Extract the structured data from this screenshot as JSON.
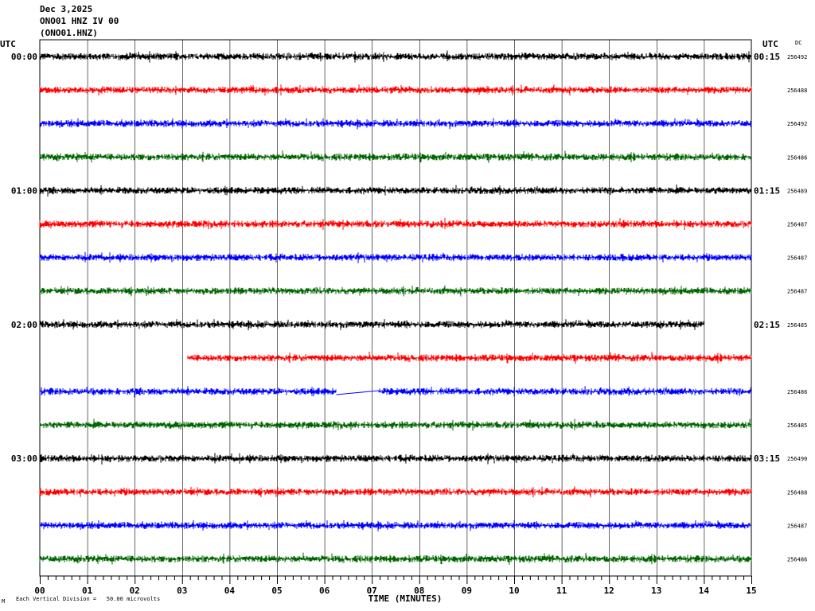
{
  "header": {
    "date": "Dec 3,2025",
    "station": "ONO01 HNZ IV 00",
    "channel": "(ONO01.HNZ)"
  },
  "left_axis_label": "UTC",
  "right_axis_label": "UTC",
  "dc_label": "DC",
  "footer": {
    "scale_note": "Each Vertical Division =   50.00 microvolts",
    "corner_mark": "M"
  },
  "colors": {
    "trace_cycle": [
      "#000000",
      "#ff0000",
      "#0000ff",
      "#006400"
    ],
    "gap_line": "#0000ff"
  },
  "chart_data": {
    "type": "line",
    "title": "Dec 3,2025 ONO01 HNZ IV 00 (ONO01.HNZ)",
    "xlabel": "TIME (MINUTES)",
    "xlim": [
      0,
      15
    ],
    "x_ticks": [
      "00",
      "01",
      "02",
      "03",
      "04",
      "05",
      "06",
      "07",
      "08",
      "09",
      "10",
      "11",
      "12",
      "13",
      "14",
      "15"
    ],
    "grid": "vertical lines every minute",
    "rows": [
      {
        "left": "00:00",
        "right": "00:15",
        "dc": "256492",
        "color": "#000000",
        "segments": [
          [
            0,
            15
          ]
        ]
      },
      {
        "left": "",
        "right": "",
        "dc": "256488",
        "color": "#ff0000",
        "segments": [
          [
            0,
            15
          ]
        ]
      },
      {
        "left": "",
        "right": "",
        "dc": "256492",
        "color": "#0000ff",
        "segments": [
          [
            0,
            15
          ]
        ]
      },
      {
        "left": "",
        "right": "",
        "dc": "256486",
        "color": "#006400",
        "segments": [
          [
            0,
            15
          ]
        ]
      },
      {
        "left": "01:00",
        "right": "01:15",
        "dc": "256489",
        "color": "#000000",
        "segments": [
          [
            0,
            15
          ]
        ]
      },
      {
        "left": "",
        "right": "",
        "dc": "256487",
        "color": "#ff0000",
        "segments": [
          [
            0,
            15
          ]
        ]
      },
      {
        "left": "",
        "right": "",
        "dc": "256487",
        "color": "#0000ff",
        "segments": [
          [
            0,
            15
          ]
        ]
      },
      {
        "left": "",
        "right": "",
        "dc": "256487",
        "color": "#006400",
        "segments": [
          [
            0,
            15
          ]
        ]
      },
      {
        "left": "02:00",
        "right": "02:15",
        "dc": "256485",
        "color": "#000000",
        "segments": [
          [
            0,
            14
          ]
        ]
      },
      {
        "left": "",
        "right": "",
        "dc": "",
        "color": "#ff0000",
        "segments": [
          [
            3.12,
            15
          ]
        ]
      },
      {
        "left": "",
        "right": "",
        "dc": "256486",
        "color": "#0000ff",
        "segments": [
          [
            0,
            6.25
          ],
          [
            7.15,
            15
          ]
        ],
        "gap_connector": [
          6.25,
          7.15
        ]
      },
      {
        "left": "",
        "right": "",
        "dc": "256485",
        "color": "#006400",
        "segments": [
          [
            0,
            15
          ]
        ]
      },
      {
        "left": "03:00",
        "right": "03:15",
        "dc": "256490",
        "color": "#000000",
        "segments": [
          [
            0,
            15
          ]
        ]
      },
      {
        "left": "",
        "right": "",
        "dc": "256488",
        "color": "#ff0000",
        "segments": [
          [
            0,
            15
          ]
        ]
      },
      {
        "left": "",
        "right": "",
        "dc": "256487",
        "color": "#0000ff",
        "segments": [
          [
            0,
            15
          ]
        ]
      },
      {
        "left": "",
        "right": "",
        "dc": "256486",
        "color": "#006400",
        "segments": [
          [
            0,
            15
          ]
        ]
      }
    ]
  }
}
